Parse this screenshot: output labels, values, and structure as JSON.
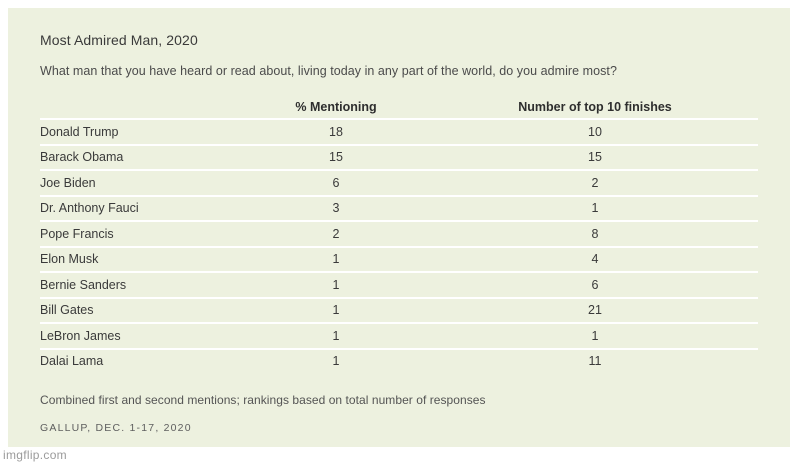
{
  "panel": {
    "title": "Most Admired Man, 2020",
    "question": "What man that you have heard or read about, living today in any part of the world, do you admire most?",
    "footnote": "Combined first and second mentions; rankings based on total number of responses",
    "source": "GALLUP, DEC. 1-17, 2020"
  },
  "watermark": "imgflip.com",
  "colors": {
    "panel_bg": "#edf1df",
    "divider": "#ffffff",
    "text_dark": "#3a3a3a",
    "text_header": "#2e2e2e"
  },
  "chart_data": {
    "type": "table",
    "title": "Most Admired Man, 2020",
    "columns": [
      "",
      "% Mentioning",
      "Number of top 10 finishes"
    ],
    "rows": [
      [
        "Donald Trump",
        "18",
        "10"
      ],
      [
        "Barack Obama",
        "15",
        "15"
      ],
      [
        "Joe Biden",
        "6",
        "2"
      ],
      [
        "Dr. Anthony Fauci",
        "3",
        "1"
      ],
      [
        "Pope Francis",
        "2",
        "8"
      ],
      [
        "Elon Musk",
        "1",
        "4"
      ],
      [
        "Bernie Sanders",
        "1",
        "6"
      ],
      [
        "Bill Gates",
        "1",
        "21"
      ],
      [
        "LeBron James",
        "1",
        "1"
      ],
      [
        "Dalai Lama",
        "1",
        "11"
      ]
    ]
  }
}
